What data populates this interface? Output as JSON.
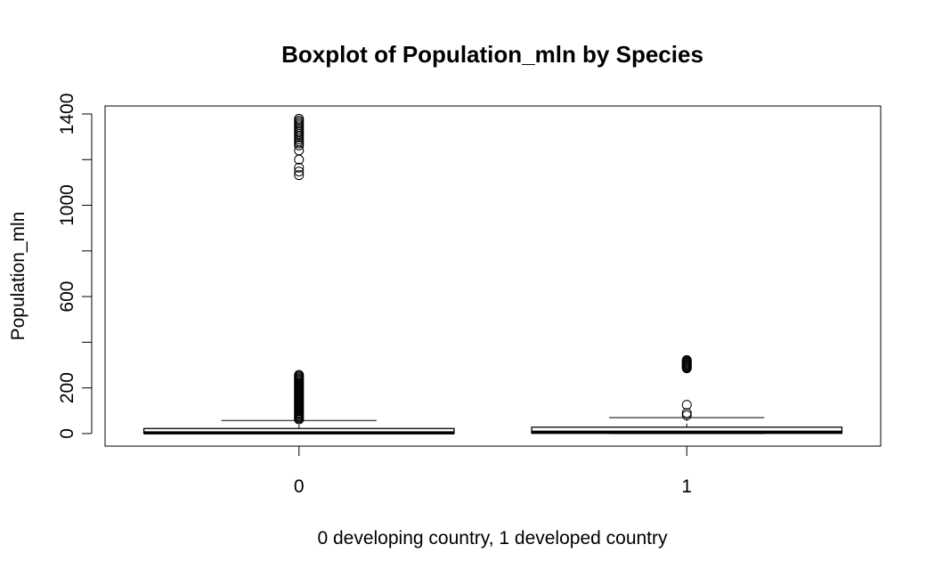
{
  "chart_data": {
    "type": "boxplot",
    "title": "Boxplot of Population_mln by Species",
    "xlabel": "0 developing country, 1 developed country",
    "ylabel": "Population_mln",
    "categories": [
      "0",
      "1"
    ],
    "ylim": [
      -55,
      1435
    ],
    "yticks": [
      0,
      200,
      400,
      600,
      800,
      1000,
      1200,
      1400
    ],
    "ytick_labels": [
      "0",
      "200",
      "",
      "600",
      "",
      "1000",
      "",
      "1400"
    ],
    "boxes": [
      {
        "category": "0",
        "whisker_low": 0,
        "q1": 0.5,
        "median": 3,
        "q3": 22,
        "whisker_high": 57,
        "outliers": [
          1379,
          1371,
          1364,
          1357,
          1350,
          1342,
          1335,
          1327,
          1320,
          1312,
          1305,
          1297,
          1288,
          1280,
          1271,
          1262,
          1240,
          1200,
          1165,
          1148,
          1132,
          257,
          252,
          247,
          242,
          237,
          232,
          227,
          222,
          217,
          212,
          207,
          202,
          197,
          192,
          187,
          182,
          177,
          172,
          167,
          162,
          157,
          152,
          147,
          142,
          137,
          132,
          127,
          122,
          117,
          112,
          107,
          102,
          97,
          92,
          87,
          82,
          77,
          72,
          67,
          62
        ]
      },
      {
        "category": "1",
        "whisker_low": 0,
        "q1": 1,
        "median": 6,
        "q3": 28,
        "whisker_high": 70,
        "outliers": [
          322,
          318,
          314,
          310,
          306,
          302,
          298,
          294,
          290,
          286,
          126,
          90,
          80
        ]
      }
    ]
  }
}
